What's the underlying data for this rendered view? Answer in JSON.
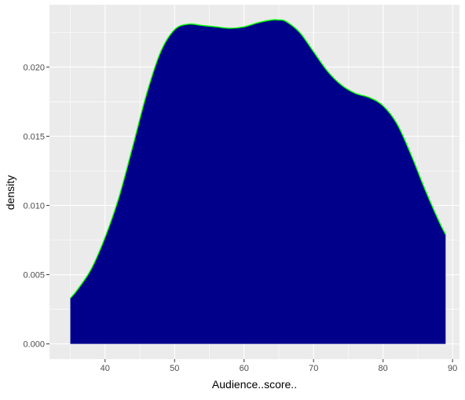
{
  "chart_data": {
    "type": "area",
    "title": "",
    "xlabel": "Audience..score..",
    "ylabel": "density",
    "xlim": [
      32,
      91
    ],
    "ylim": [
      -0.0011,
      0.0245
    ],
    "x_ticks": [
      40,
      50,
      60,
      70,
      80,
      90
    ],
    "x_tick_labels": [
      "40",
      "50",
      "60",
      "70",
      "80",
      "90"
    ],
    "y_ticks": [
      0.0,
      0.005,
      0.01,
      0.015,
      0.02
    ],
    "y_tick_labels": [
      "0.000",
      "0.005",
      "0.010",
      "0.015",
      "0.020"
    ],
    "grid": true,
    "legend": "none",
    "series": [
      {
        "x": [
          35,
          36,
          38,
          40,
          42,
          44,
          46,
          48,
          50,
          52,
          54,
          56,
          58,
          60,
          62,
          64,
          65,
          66,
          68,
          70,
          72,
          74,
          76,
          78,
          80,
          82,
          84,
          86,
          88,
          89
        ],
        "y": [
          0.0033,
          0.0039,
          0.0054,
          0.0077,
          0.0106,
          0.0143,
          0.0181,
          0.0211,
          0.0227,
          0.0231,
          0.023,
          0.0229,
          0.0228,
          0.0229,
          0.0232,
          0.0234,
          0.0234,
          0.0233,
          0.0225,
          0.0211,
          0.0197,
          0.0187,
          0.0181,
          0.0178,
          0.0172,
          0.0159,
          0.0137,
          0.0112,
          0.0089,
          0.0079
        ]
      }
    ],
    "colors": {
      "fill": "#00008b",
      "line": "#00ff00",
      "panel": "#ebebeb",
      "grid_major": "#ffffff",
      "tick_text": "#4d4d4d",
      "tick_mark": "#333333",
      "title_text": "#000000"
    }
  }
}
